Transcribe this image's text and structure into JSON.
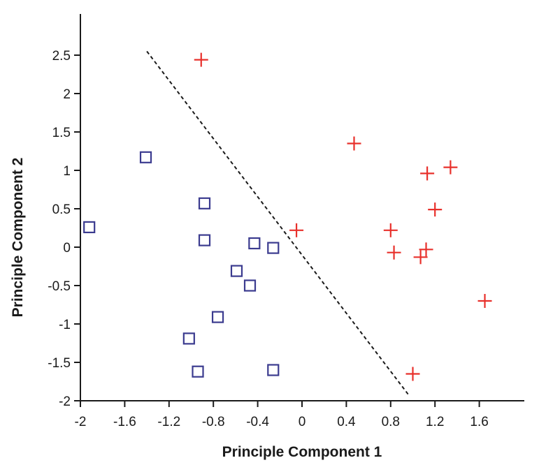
{
  "chart_data": {
    "type": "scatter",
    "xlabel": "Principle Component 1",
    "ylabel": "Principle Component 2",
    "xlim": [
      -2,
      2
    ],
    "ylim": [
      -2,
      3
    ],
    "x_ticks": [
      -2,
      -1.6,
      -1.2,
      -0.8,
      -0.4,
      0,
      0.4,
      0.8,
      1.2,
      1.6
    ],
    "x_tick_labels": [
      "-2",
      "-1.6",
      "-1.2",
      "-0.8",
      "-0.4",
      "0",
      "0.4",
      "0.8",
      "1.2",
      "1.6"
    ],
    "y_ticks": [
      -2,
      -1.5,
      -1,
      -0.5,
      0,
      0.5,
      1,
      1.5,
      2,
      2.5
    ],
    "y_tick_labels": [
      "-2",
      "-1.5",
      "-1",
      "-0.5",
      "0",
      "0.5",
      "1",
      "1.5",
      "2",
      "2.5"
    ],
    "grid": false,
    "legend": "none",
    "series": [
      {
        "marker": "square",
        "color": "#3b3b8f",
        "points": [
          [
            -1.92,
            0.26
          ],
          [
            -1.41,
            1.17
          ],
          [
            -0.88,
            0.57
          ],
          [
            -0.88,
            0.09
          ],
          [
            -0.43,
            0.05
          ],
          [
            -0.26,
            -0.01
          ],
          [
            -0.59,
            -0.31
          ],
          [
            -0.47,
            -0.5
          ],
          [
            -0.76,
            -0.91
          ],
          [
            -1.02,
            -1.19
          ],
          [
            -0.94,
            -1.62
          ],
          [
            -0.26,
            -1.6
          ]
        ]
      },
      {
        "marker": "plus",
        "color": "#e8302b",
        "points": [
          [
            -0.91,
            2.44
          ],
          [
            0.47,
            1.35
          ],
          [
            -0.05,
            0.22
          ],
          [
            0.8,
            0.22
          ],
          [
            0.83,
            -0.07
          ],
          [
            1.07,
            -0.13
          ],
          [
            1.12,
            -0.03
          ],
          [
            1.13,
            0.96
          ],
          [
            1.2,
            0.49
          ],
          [
            1.34,
            1.04
          ],
          [
            1.65,
            -0.7
          ],
          [
            1.0,
            -1.65
          ]
        ]
      }
    ],
    "boundary_line": {
      "style": "dashed",
      "color": "#1a1a1a",
      "from": [
        -1.4,
        2.55
      ],
      "to": [
        0.96,
        -1.92
      ]
    }
  }
}
